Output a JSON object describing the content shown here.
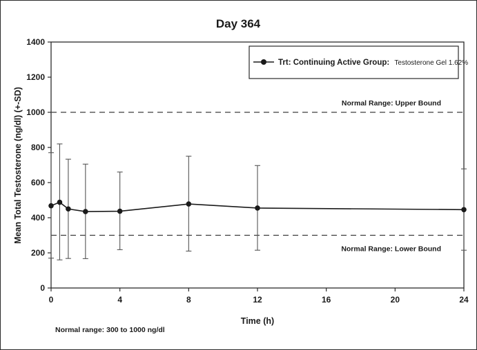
{
  "chart_data": {
    "type": "line",
    "title": "Day 364",
    "xlabel": "Time (h)",
    "ylabel": "Mean Total Testosterone (ng/dl) (+-SD)",
    "xlim": [
      0,
      24
    ],
    "ylim": [
      0,
      1400
    ],
    "xticks": [
      0,
      4,
      8,
      12,
      16,
      20,
      24
    ],
    "yticks": [
      0,
      200,
      400,
      600,
      800,
      1000,
      1200,
      1400
    ],
    "grid": false,
    "legend_position": "top-right",
    "series": [
      {
        "name": "Trt: Continuing Active Group:",
        "name_suffix": "Testosterone Gel 1.62%",
        "color": "#1a1a1a",
        "x": [
          0,
          0.5,
          1,
          2,
          4,
          8,
          12,
          24
        ],
        "y": [
          468,
          488,
          450,
          435,
          437,
          478,
          455,
          446
        ],
        "sd_upper": [
          770,
          820,
          733,
          705,
          660,
          750,
          697,
          678
        ],
        "sd_lower": [
          170,
          160,
          168,
          167,
          218,
          210,
          215,
          215
        ]
      }
    ],
    "reference_lines": [
      {
        "y": 1000,
        "label": "Normal Range: Upper Bound"
      },
      {
        "y": 300,
        "label": "Normal Range: Lower Bound"
      }
    ],
    "footnote": "Normal range: 300 to 1000 ng/dl"
  }
}
